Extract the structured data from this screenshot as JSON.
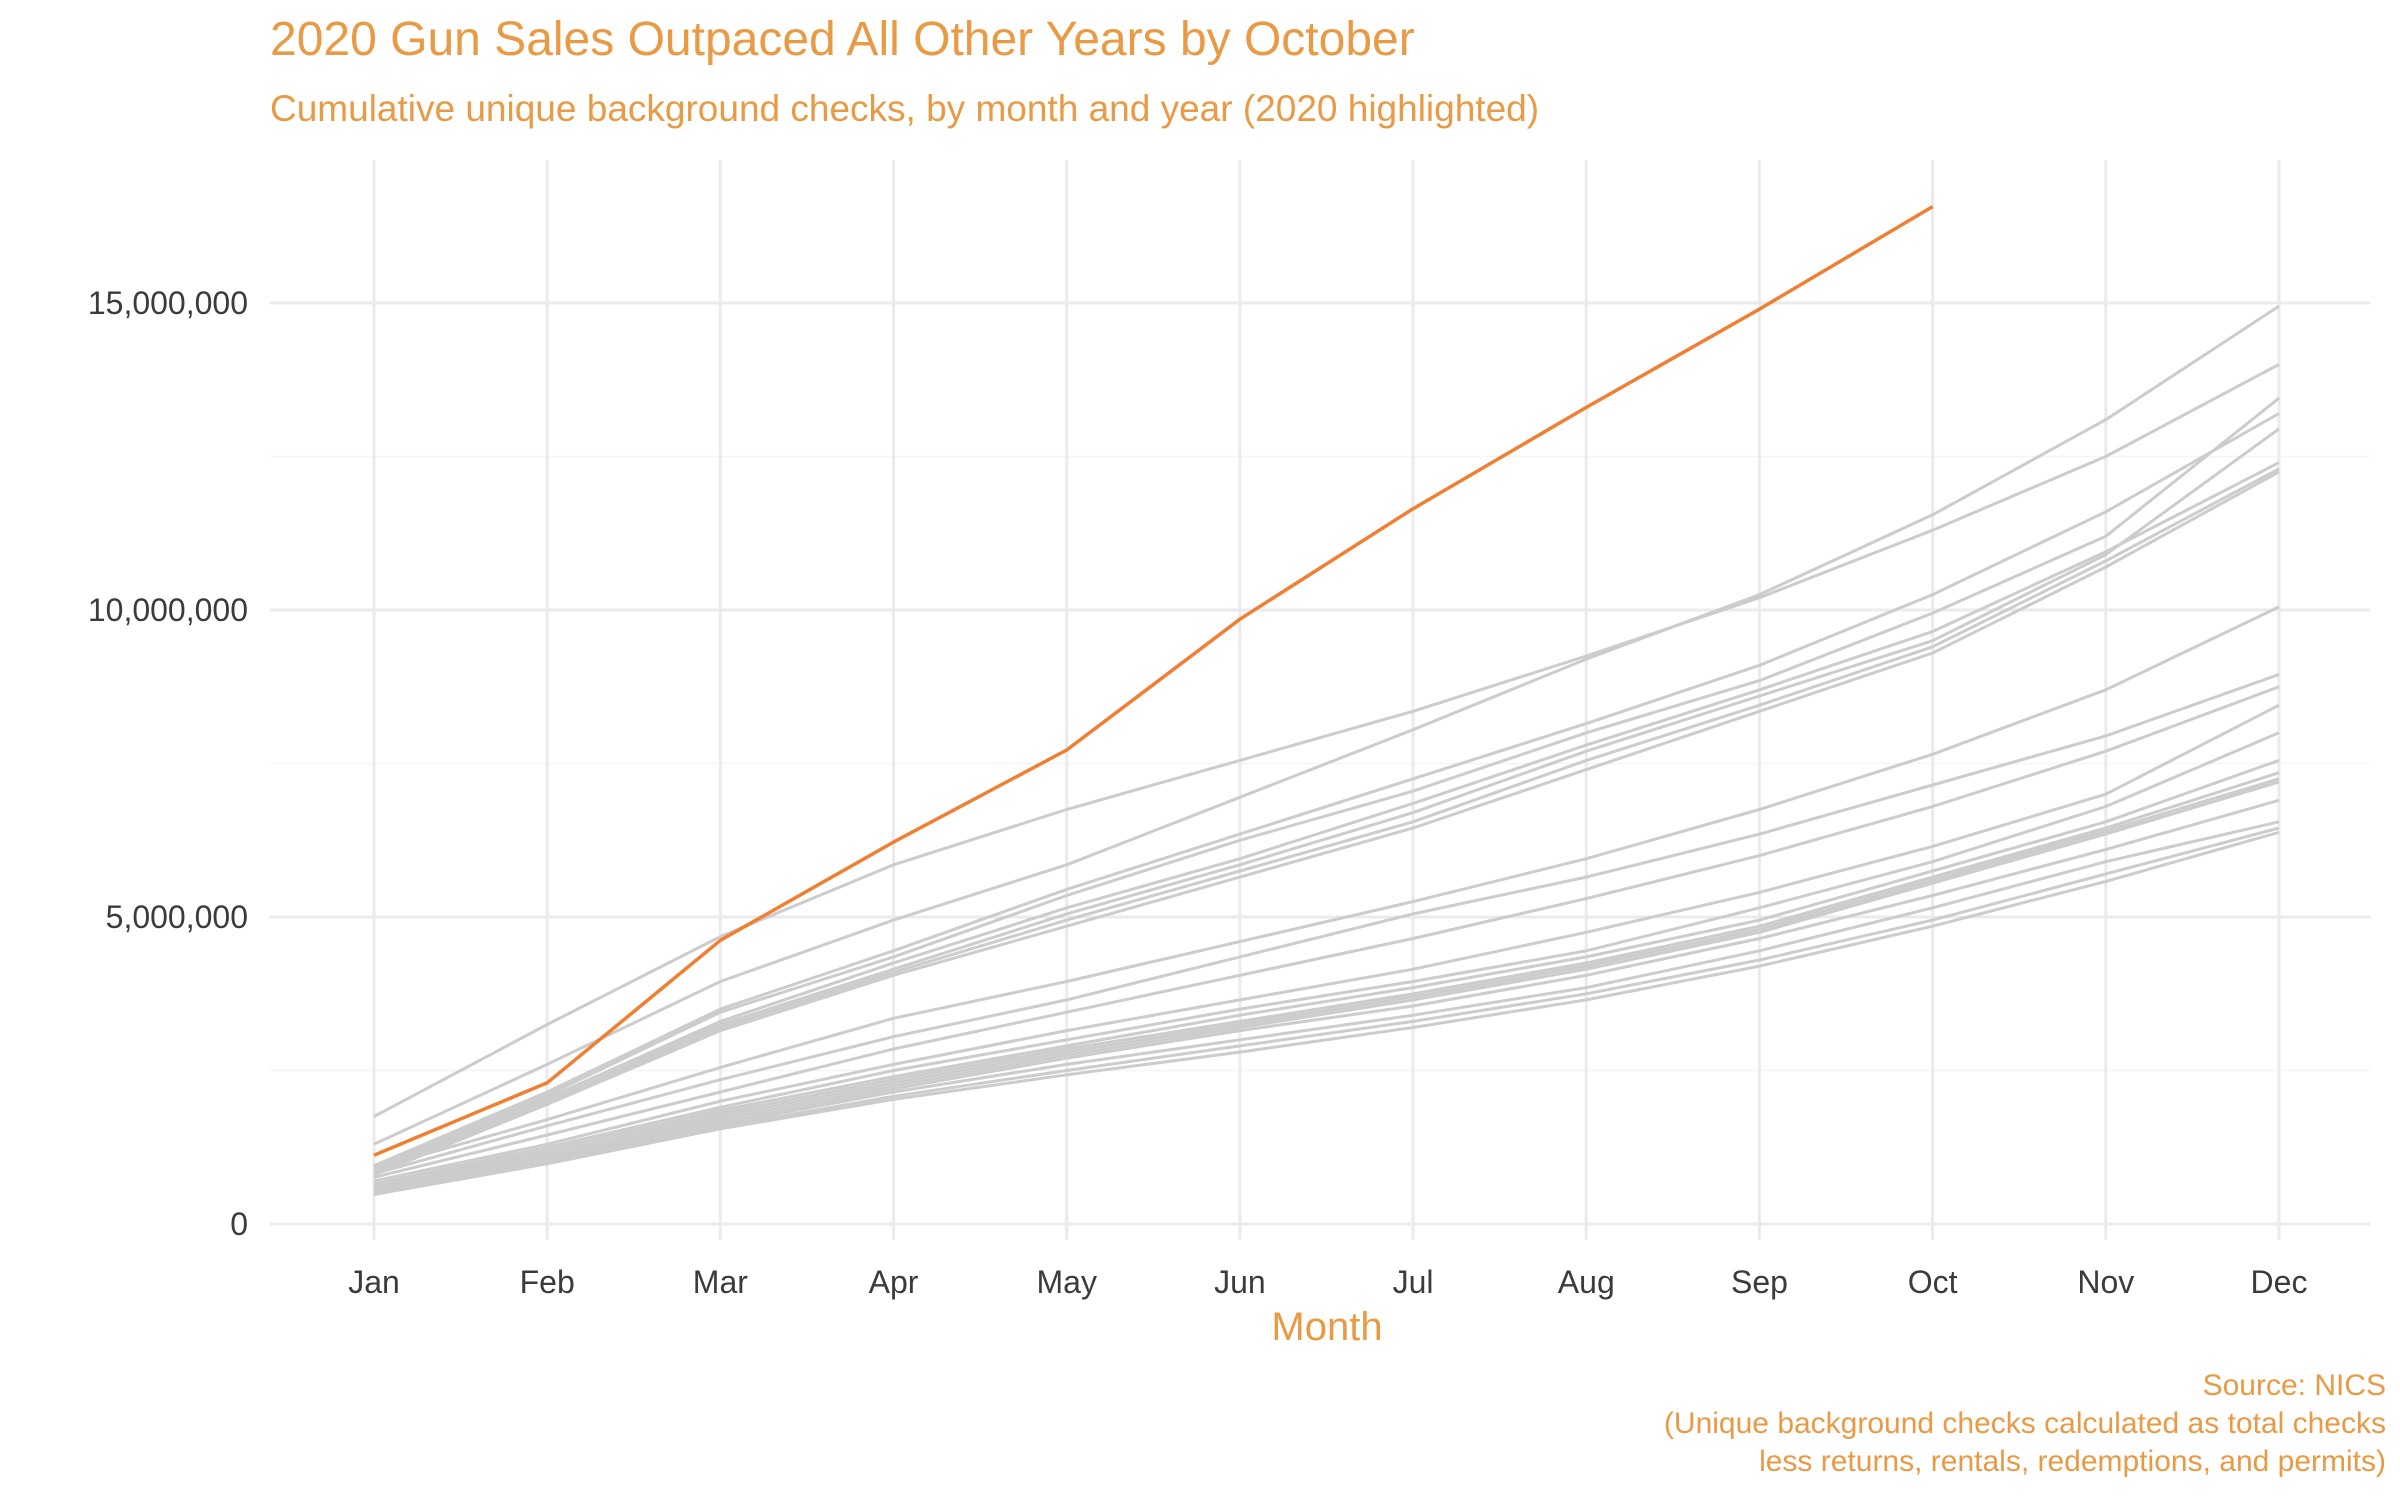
{
  "colors": {
    "accent": "#E89A45",
    "highlight_line": "#F07F33",
    "other_lines": "#CCCCCC",
    "grid": "#EBEBEB",
    "tick_text": "#3b3b3b"
  },
  "chart_data": {
    "type": "line",
    "title": "2020 Gun Sales Outpaced All Other Years by October",
    "subtitle": "Cumulative unique background checks, by month and year (2020 highlighted)",
    "xlabel": "Month",
    "ylabel": "",
    "categories": [
      "Jan",
      "Feb",
      "Mar",
      "Apr",
      "May",
      "Jun",
      "Jul",
      "Aug",
      "Sep",
      "Oct",
      "Nov",
      "Dec"
    ],
    "ylim": [
      -250000,
      17000000
    ],
    "yticks": [
      0,
      5000000,
      10000000,
      15000000
    ],
    "ytick_labels": [
      "0",
      "5,000,000",
      "10,000,000",
      "15,000,000"
    ],
    "grid": true,
    "legend": "none",
    "highlight": {
      "values": [
        1120000,
        2300000,
        4620000,
        6220000,
        7720000,
        9850000,
        11650000,
        13300000,
        14900000,
        16570000
      ]
    },
    "series": [
      {
        "values": [
          1750000,
          3250000,
          4680000,
          5850000,
          6750000,
          7550000,
          8350000,
          9250000,
          10200000,
          11300000,
          12500000,
          14000000
        ]
      },
      {
        "values": [
          1300000,
          2600000,
          3950000,
          4950000,
          5850000,
          6950000,
          8050000,
          9200000,
          10250000,
          11550000,
          13100000,
          14950000
        ]
      },
      {
        "values": [
          950000,
          2150000,
          3500000,
          4450000,
          5450000,
          6350000,
          7250000,
          8150000,
          9100000,
          10250000,
          11600000,
          13200000
        ]
      },
      {
        "values": [
          900000,
          2100000,
          3450000,
          4350000,
          5350000,
          6250000,
          7050000,
          8000000,
          8850000,
          9950000,
          11200000,
          13450000
        ]
      },
      {
        "values": [
          880000,
          2050000,
          3300000,
          4250000,
          5150000,
          5950000,
          6850000,
          7800000,
          8700000,
          9650000,
          10950000,
          12400000
        ]
      },
      {
        "values": [
          850000,
          2000000,
          3250000,
          4150000,
          5050000,
          5850000,
          6700000,
          7700000,
          8600000,
          9500000,
          10900000,
          12950000
        ]
      },
      {
        "values": [
          830000,
          1980000,
          3200000,
          4100000,
          4950000,
          5750000,
          6550000,
          7550000,
          8450000,
          9400000,
          10800000,
          12300000
        ]
      },
      {
        "values": [
          800000,
          1950000,
          3150000,
          4050000,
          4850000,
          5650000,
          6450000,
          7400000,
          8350000,
          9300000,
          10700000,
          12250000
        ]
      },
      {
        "values": [
          900000,
          1700000,
          2550000,
          3350000,
          3950000,
          4600000,
          5250000,
          5950000,
          6750000,
          7650000,
          8700000,
          10050000
        ]
      },
      {
        "values": [
          820000,
          1600000,
          2350000,
          3050000,
          3650000,
          4350000,
          5050000,
          5650000,
          6350000,
          7150000,
          7950000,
          8950000
        ]
      },
      {
        "values": [
          760000,
          1450000,
          2150000,
          2850000,
          3450000,
          4050000,
          4650000,
          5300000,
          6000000,
          6800000,
          7700000,
          8750000
        ]
      },
      {
        "values": [
          700000,
          1300000,
          2000000,
          2600000,
          3150000,
          3650000,
          4150000,
          4750000,
          5400000,
          6150000,
          7000000,
          8450000
        ]
      },
      {
        "values": [
          650000,
          1250000,
          1900000,
          2500000,
          3000000,
          3500000,
          3950000,
          4450000,
          5150000,
          5900000,
          6800000,
          8000000
        ]
      },
      {
        "values": [
          620000,
          1200000,
          1850000,
          2400000,
          2900000,
          3400000,
          3850000,
          4350000,
          4950000,
          5750000,
          6550000,
          7550000
        ]
      },
      {
        "values": [
          600000,
          1150000,
          1800000,
          2350000,
          2850000,
          3300000,
          3750000,
          4250000,
          4850000,
          5650000,
          6450000,
          7350000
        ]
      },
      {
        "values": [
          580000,
          1100000,
          1750000,
          2300000,
          2800000,
          3250000,
          3700000,
          4200000,
          4800000,
          5600000,
          6400000,
          7250000
        ]
      },
      {
        "values": [
          560000,
          1080000,
          1700000,
          2250000,
          2750000,
          3200000,
          3650000,
          4150000,
          4750000,
          5550000,
          6350000,
          7200000
        ]
      },
      {
        "values": [
          540000,
          1050000,
          1650000,
          2200000,
          2700000,
          3150000,
          3550000,
          4050000,
          4650000,
          5350000,
          6100000,
          6900000
        ]
      },
      {
        "values": [
          520000,
          1030000,
          1620000,
          2150000,
          2600000,
          3000000,
          3400000,
          3850000,
          4450000,
          5150000,
          5900000,
          6550000
        ]
      },
      {
        "values": [
          500000,
          1000000,
          1580000,
          2080000,
          2500000,
          2900000,
          3300000,
          3750000,
          4300000,
          4950000,
          5700000,
          6450000
        ]
      },
      {
        "values": [
          480000,
          980000,
          1550000,
          2030000,
          2430000,
          2800000,
          3200000,
          3650000,
          4200000,
          4850000,
          5580000,
          6380000
        ]
      }
    ]
  },
  "caption": {
    "source": "Source: NICS",
    "note_line1": "(Unique background checks calculated as total checks",
    "note_line2": "less returns, rentals, redemptions, and permits)"
  }
}
